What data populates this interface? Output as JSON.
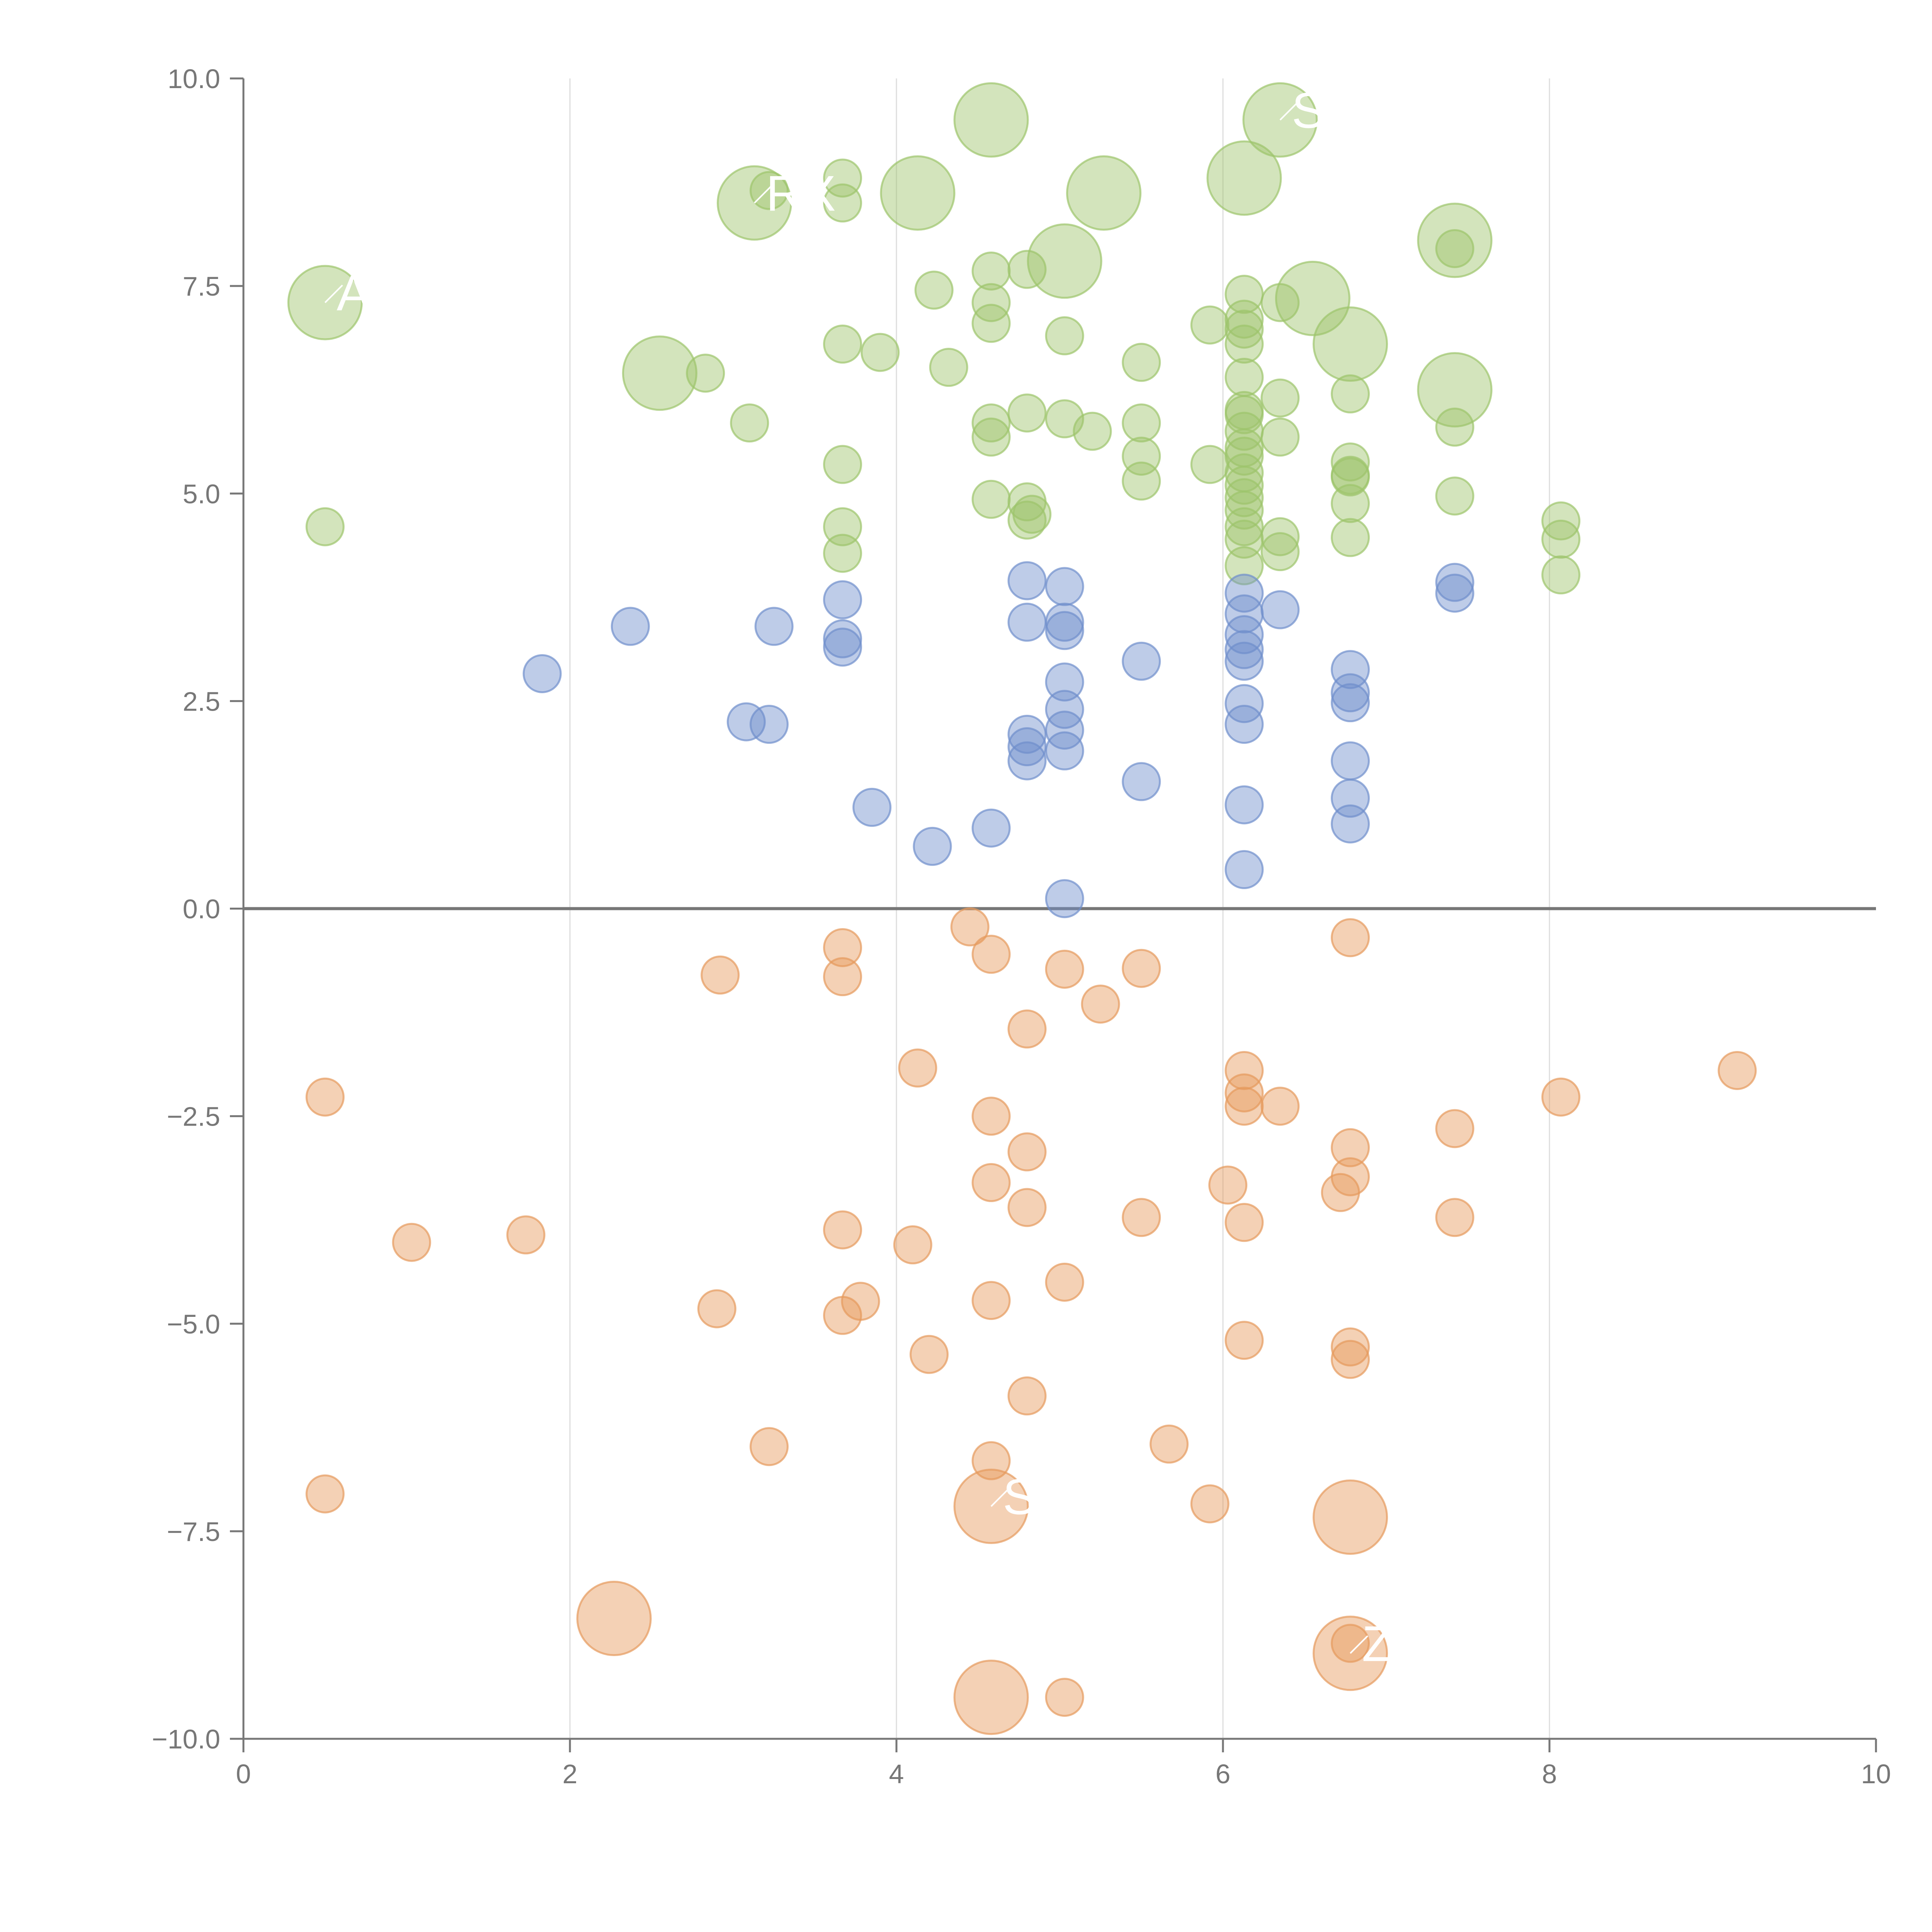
{
  "chart_data": {
    "type": "scatter",
    "title": "",
    "xlabel": "",
    "ylabel": "",
    "xlim": [
      0,
      10
    ],
    "ylim": [
      -10,
      10
    ],
    "xticks": [
      "0",
      "2",
      "4",
      "6",
      "8",
      "10"
    ],
    "yticks": [
      "−10.0",
      "−7.5",
      "−5.0",
      "−2.5",
      "0.0",
      "2.5",
      "5.0",
      "7.5",
      "10.0"
    ],
    "grid": "vertical",
    "colors": {
      "green": "#9dc46b",
      "blue": "#6f8fcc",
      "orange": "#e69a5c",
      "axis": "#777777"
    },
    "series": [
      {
        "name": "high",
        "color": "#9dc46b",
        "points": [
          [
            0.5,
            7.3,
            "L"
          ],
          [
            0.5,
            4.6
          ],
          [
            2.55,
            6.45,
            "L"
          ],
          [
            2.83,
            6.45
          ],
          [
            3.1,
            5.85
          ],
          [
            3.13,
            8.5,
            "L"
          ],
          [
            3.22,
            8.65
          ],
          [
            3.67,
            8.8
          ],
          [
            3.67,
            8.5
          ],
          [
            3.67,
            6.8
          ],
          [
            3.67,
            5.35
          ],
          [
            3.67,
            4.6
          ],
          [
            3.67,
            4.28
          ],
          [
            3.9,
            6.7
          ],
          [
            4.13,
            8.62,
            "L"
          ],
          [
            4.23,
            7.45
          ],
          [
            4.32,
            6.52
          ],
          [
            4.58,
            9.5,
            "L"
          ],
          [
            4.58,
            7.68
          ],
          [
            4.58,
            7.3
          ],
          [
            4.58,
            7.05
          ],
          [
            4.58,
            5.85
          ],
          [
            4.58,
            5.68
          ],
          [
            4.58,
            4.93
          ],
          [
            4.8,
            7.7
          ],
          [
            4.8,
            5.97
          ],
          [
            4.8,
            4.9
          ],
          [
            4.8,
            4.68
          ],
          [
            4.83,
            4.75
          ],
          [
            5.03,
            7.8,
            "L"
          ],
          [
            5.03,
            6.9
          ],
          [
            5.03,
            5.9
          ],
          [
            5.2,
            5.75
          ],
          [
            5.27,
            8.62,
            "L"
          ],
          [
            5.5,
            6.58
          ],
          [
            5.5,
            5.85
          ],
          [
            5.5,
            5.45
          ],
          [
            5.5,
            5.15
          ],
          [
            5.92,
            7.03
          ],
          [
            5.92,
            5.35
          ],
          [
            6.13,
            8.8,
            "L"
          ],
          [
            6.13,
            7.4
          ],
          [
            6.13,
            7.1
          ],
          [
            6.13,
            6.98
          ],
          [
            6.13,
            6.8
          ],
          [
            6.13,
            6.4
          ],
          [
            6.13,
            6.0
          ],
          [
            6.13,
            5.95
          ],
          [
            6.13,
            5.75
          ],
          [
            6.13,
            5.55
          ],
          [
            6.13,
            5.45
          ],
          [
            6.13,
            5.25
          ],
          [
            6.13,
            5.1
          ],
          [
            6.13,
            4.95
          ],
          [
            6.13,
            4.8
          ],
          [
            6.13,
            4.6
          ],
          [
            6.13,
            4.45
          ],
          [
            6.13,
            4.13
          ],
          [
            6.35,
            9.5,
            "L"
          ],
          [
            6.35,
            7.3
          ],
          [
            6.35,
            6.15
          ],
          [
            6.35,
            5.68
          ],
          [
            6.35,
            4.48
          ],
          [
            6.35,
            4.3
          ],
          [
            6.55,
            7.35,
            "L"
          ],
          [
            6.78,
            6.8,
            "L"
          ],
          [
            6.78,
            6.2
          ],
          [
            6.78,
            5.38
          ],
          [
            6.78,
            5.2
          ],
          [
            6.78,
            5.22
          ],
          [
            6.78,
            4.88
          ],
          [
            6.78,
            4.47
          ],
          [
            7.42,
            8.05,
            "L"
          ],
          [
            7.42,
            7.95
          ],
          [
            7.42,
            6.25,
            "L"
          ],
          [
            7.42,
            5.8
          ],
          [
            7.42,
            4.97
          ],
          [
            8.07,
            4.67
          ],
          [
            8.07,
            4.45
          ],
          [
            8.07,
            4.02
          ]
        ]
      },
      {
        "name": "mid",
        "color": "#6f8fcc",
        "points": [
          [
            1.83,
            2.83
          ],
          [
            2.37,
            3.4
          ],
          [
            3.08,
            2.25
          ],
          [
            3.22,
            2.22
          ],
          [
            3.25,
            3.4
          ],
          [
            3.67,
            3.72
          ],
          [
            3.67,
            3.25
          ],
          [
            3.67,
            3.15
          ],
          [
            3.85,
            1.22
          ],
          [
            4.22,
            0.75
          ],
          [
            4.58,
            0.97
          ],
          [
            4.8,
            3.95
          ],
          [
            4.8,
            3.45
          ],
          [
            4.8,
            2.1
          ],
          [
            4.8,
            1.95
          ],
          [
            4.8,
            1.78
          ],
          [
            5.03,
            3.88
          ],
          [
            5.03,
            3.45
          ],
          [
            5.03,
            3.35
          ],
          [
            5.03,
            2.73
          ],
          [
            5.03,
            2.4
          ],
          [
            5.03,
            2.15
          ],
          [
            5.03,
            1.9
          ],
          [
            5.03,
            0.12
          ],
          [
            5.5,
            2.98
          ],
          [
            5.5,
            1.53
          ],
          [
            6.13,
            3.8
          ],
          [
            6.13,
            3.55
          ],
          [
            6.13,
            3.3
          ],
          [
            6.13,
            3.12
          ],
          [
            6.13,
            2.98
          ],
          [
            6.13,
            2.47
          ],
          [
            6.13,
            2.22
          ],
          [
            6.13,
            1.25
          ],
          [
            6.13,
            0.47
          ],
          [
            6.35,
            3.6
          ],
          [
            6.78,
            2.88
          ],
          [
            6.78,
            2.6
          ],
          [
            6.78,
            2.48
          ],
          [
            6.78,
            1.78
          ],
          [
            6.78,
            1.33
          ],
          [
            6.78,
            1.02
          ],
          [
            7.42,
            3.93
          ],
          [
            7.42,
            3.8
          ]
        ]
      },
      {
        "name": "low",
        "color": "#e69a5c",
        "points": [
          [
            0.5,
            -2.27
          ],
          [
            0.5,
            -7.05
          ],
          [
            1.03,
            -4.02
          ],
          [
            1.73,
            -3.93
          ],
          [
            2.27,
            -8.55,
            "L"
          ],
          [
            2.9,
            -4.82
          ],
          [
            2.92,
            -0.8
          ],
          [
            3.22,
            -6.48
          ],
          [
            3.67,
            -0.47
          ],
          [
            3.67,
            -0.82
          ],
          [
            3.67,
            -3.87
          ],
          [
            3.67,
            -4.9
          ],
          [
            3.78,
            -4.73
          ],
          [
            4.1,
            -4.05
          ],
          [
            4.13,
            -1.92
          ],
          [
            4.2,
            -5.37
          ],
          [
            4.45,
            -0.22
          ],
          [
            4.58,
            -0.55
          ],
          [
            4.58,
            -2.5
          ],
          [
            4.58,
            -3.3
          ],
          [
            4.58,
            -4.72
          ],
          [
            4.58,
            -6.65
          ],
          [
            4.58,
            -7.2,
            "L"
          ],
          [
            4.58,
            -9.5,
            "L"
          ],
          [
            4.8,
            -1.45
          ],
          [
            4.8,
            -2.93
          ],
          [
            4.8,
            -3.6
          ],
          [
            4.8,
            -5.87
          ],
          [
            5.03,
            -0.73
          ],
          [
            5.03,
            -4.5
          ],
          [
            5.03,
            -9.5
          ],
          [
            5.25,
            -1.15
          ],
          [
            5.5,
            -0.72
          ],
          [
            5.5,
            -3.72
          ],
          [
            5.67,
            -6.45
          ],
          [
            5.92,
            -7.17
          ],
          [
            6.03,
            -3.33
          ],
          [
            6.13,
            -1.95
          ],
          [
            6.13,
            -2.22
          ],
          [
            6.13,
            -2.38
          ],
          [
            6.13,
            -3.78
          ],
          [
            6.13,
            -5.2
          ],
          [
            6.35,
            -2.38
          ],
          [
            6.72,
            -3.42
          ],
          [
            6.78,
            -0.35
          ],
          [
            6.78,
            -2.88
          ],
          [
            6.78,
            -3.23
          ],
          [
            6.78,
            -5.28
          ],
          [
            6.78,
            -5.43
          ],
          [
            6.78,
            -7.33,
            "L"
          ],
          [
            6.78,
            -8.97,
            "L"
          ],
          [
            6.78,
            -8.85
          ],
          [
            7.42,
            -2.65
          ],
          [
            7.42,
            -3.72
          ],
          [
            8.07,
            -2.27
          ],
          [
            9.15,
            -1.95
          ]
        ]
      }
    ],
    "annotations": [
      {
        "text": "AL",
        "x": 0.5,
        "y": 7.3
      },
      {
        "text": "RX",
        "x": 3.13,
        "y": 8.5
      },
      {
        "text": "SO",
        "x": 6.35,
        "y": 9.5
      },
      {
        "text": "ST",
        "x": 4.58,
        "y": -7.2
      },
      {
        "text": "Z",
        "x": 6.78,
        "y": -8.97
      }
    ]
  }
}
